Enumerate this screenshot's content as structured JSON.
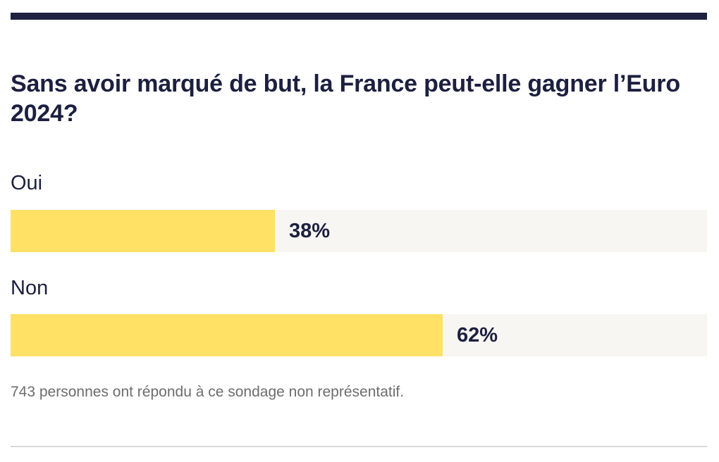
{
  "poll": {
    "question": "Sans avoir marqué de but, la France peut-elle gagner l’Euro 2024?",
    "options": [
      {
        "label": "Oui",
        "percent_label": "38%",
        "share": 0.38
      },
      {
        "label": "Non",
        "percent_label": "62%",
        "share": 0.62
      }
    ],
    "footnote": "743 personnes ont répondu à ce sondage non représentatif."
  },
  "colors": {
    "rule": "#1e2140",
    "bar_fill": "#ffe165",
    "bar_track": "#f7f6f3",
    "text": "#1c1f3f",
    "muted_text": "#6d6d6d"
  }
}
